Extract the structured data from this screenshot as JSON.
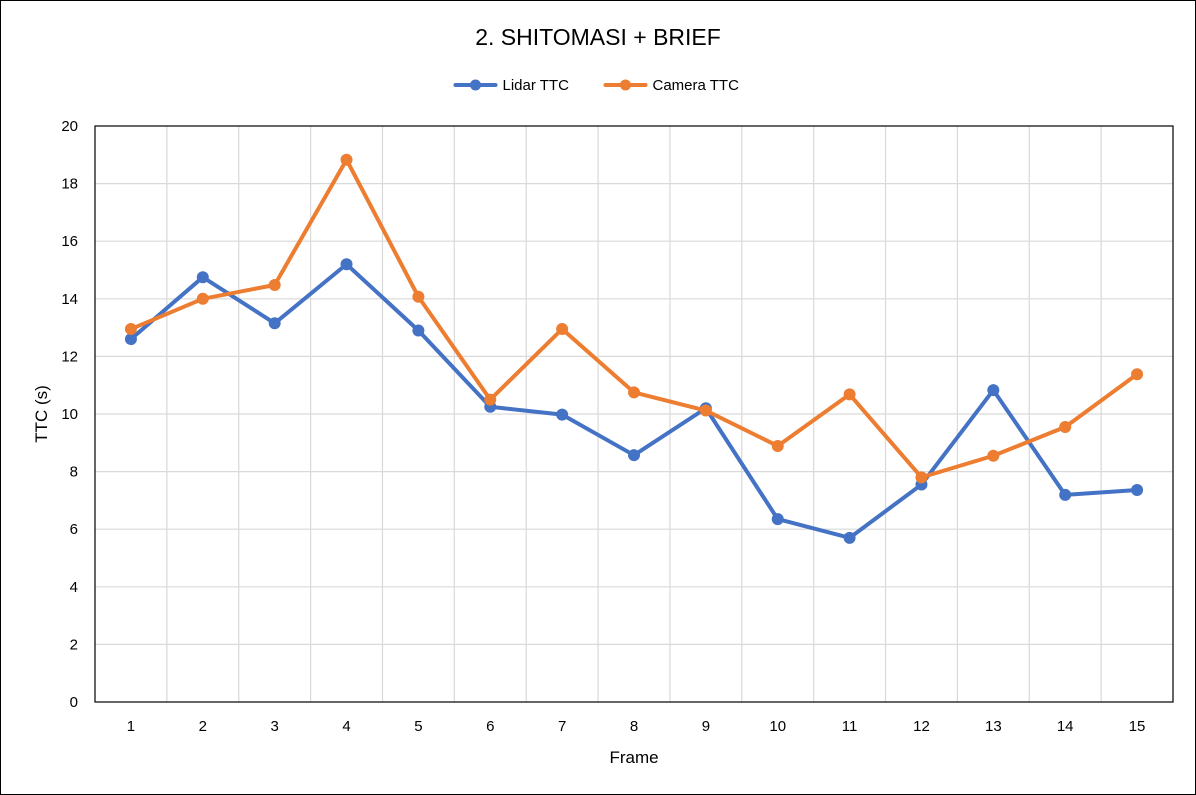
{
  "chart_data": {
    "type": "line",
    "title": "2. SHITOMASI + BRIEF",
    "xlabel": "Frame",
    "ylabel": "TTC (s)",
    "categories": [
      "1",
      "2",
      "3",
      "4",
      "5",
      "6",
      "7",
      "8",
      "9",
      "10",
      "11",
      "12",
      "13",
      "14",
      "15"
    ],
    "ylim": [
      0,
      20
    ],
    "yticks": [
      "0",
      "2",
      "4",
      "6",
      "8",
      "10",
      "12",
      "14",
      "16",
      "18",
      "20"
    ],
    "grid": true,
    "legend_position": "top",
    "series": [
      {
        "name": "Lidar TTC",
        "color": "#4472C4",
        "values": [
          12.6,
          14.75,
          13.15,
          15.2,
          12.9,
          10.25,
          9.98,
          8.57,
          10.2,
          6.35,
          5.7,
          7.55,
          10.83,
          7.19,
          7.36
        ]
      },
      {
        "name": "Camera TTC",
        "color": "#ED7D31",
        "values": [
          12.95,
          14.0,
          14.48,
          18.83,
          14.07,
          10.5,
          12.95,
          10.75,
          10.12,
          8.89,
          10.68,
          7.8,
          8.55,
          9.55,
          11.38
        ]
      }
    ]
  }
}
